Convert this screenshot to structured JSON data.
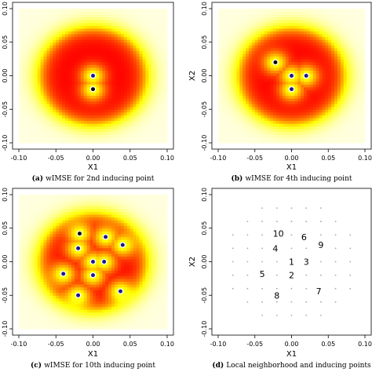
{
  "colors": {
    "low": "#ff0000",
    "high": "#ffffe0",
    "inducing_point": "#1a1a8c",
    "new_point": "#000000",
    "grid_point": "#a8a8a8"
  },
  "chart_data": [
    {
      "type": "heatmap",
      "title": "",
      "caption_tag": "(a)",
      "caption_text": "wIMSE for 2nd inducing point",
      "xlabel": "X1",
      "ylabel": "",
      "xlim": [
        -0.1,
        0.1
      ],
      "ylim": [
        -0.1,
        0.1
      ],
      "x_ticks": [
        "-0.10",
        "-0.05",
        "0.00",
        "0.05",
        "0.10"
      ],
      "y_ticks": [
        "-0.10",
        "-0.05",
        "0.00",
        "0.05",
        "0.10"
      ],
      "inducing_points": [
        [
          0.0,
          0.0
        ]
      ],
      "new_point": [
        0.0,
        -0.02
      ]
    },
    {
      "type": "heatmap",
      "title": "",
      "caption_tag": "(b)",
      "caption_text": "wIMSE for 4th inducing point",
      "xlabel": "X1",
      "ylabel": "X2",
      "xlim": [
        -0.1,
        0.1
      ],
      "ylim": [
        -0.1,
        0.1
      ],
      "x_ticks": [
        "-0.10",
        "-0.05",
        "0.00",
        "0.05",
        "0.10"
      ],
      "y_ticks": [
        "-0.10",
        "-0.05",
        "0.00",
        "0.05",
        "0.10"
      ],
      "inducing_points": [
        [
          0.0,
          0.0
        ],
        [
          0.0,
          -0.02
        ],
        [
          0.02,
          0.0
        ]
      ],
      "new_point": [
        -0.022,
        0.02
      ]
    },
    {
      "type": "heatmap",
      "title": "",
      "caption_tag": "(c)",
      "caption_text": "wIMSE for 10th inducing point",
      "xlabel": "X1",
      "ylabel": "",
      "xlim": [
        -0.1,
        0.1
      ],
      "ylim": [
        -0.1,
        0.1
      ],
      "x_ticks": [
        "-0.10",
        "-0.05",
        "0.00",
        "0.05",
        "0.10"
      ],
      "y_ticks": [
        "-0.10",
        "-0.05",
        "0.00",
        "0.05",
        "0.10"
      ],
      "inducing_points": [
        [
          0.0,
          0.0
        ],
        [
          -0.02,
          0.02
        ],
        [
          0.017,
          0.037
        ],
        [
          0.04,
          0.025
        ],
        [
          -0.04,
          -0.018
        ],
        [
          0.0,
          -0.02
        ],
        [
          0.037,
          -0.044
        ],
        [
          -0.02,
          -0.05
        ],
        [
          0.015,
          0.0
        ]
      ],
      "new_point": [
        -0.018,
        0.042
      ]
    },
    {
      "type": "scatter",
      "title": "",
      "caption_tag": "(d)",
      "caption_text": "Local neighborhood and inducing points",
      "xlabel": "X1",
      "ylabel": "X2",
      "xlim": [
        -0.1,
        0.1
      ],
      "ylim": [
        -0.1,
        0.1
      ],
      "x_ticks": [
        "-0.10",
        "-0.05",
        "0.00",
        "0.05",
        "0.10"
      ],
      "y_ticks": [
        "-0.10",
        "-0.05",
        "0.00",
        "0.05",
        "0.10"
      ],
      "grid_step": 0.02,
      "grid_extent": 0.08,
      "labels": [
        {
          "text": "1",
          "x": 0.0,
          "y": 0.0
        },
        {
          "text": "2",
          "x": 0.0,
          "y": -0.02
        },
        {
          "text": "3",
          "x": 0.02,
          "y": 0.0
        },
        {
          "text": "4",
          "x": -0.022,
          "y": 0.02
        },
        {
          "text": "5",
          "x": -0.04,
          "y": -0.018
        },
        {
          "text": "6",
          "x": 0.017,
          "y": 0.037
        },
        {
          "text": "7",
          "x": 0.037,
          "y": -0.044
        },
        {
          "text": "8",
          "x": -0.02,
          "y": -0.05
        },
        {
          "text": "9",
          "x": 0.04,
          "y": 0.025
        },
        {
          "text": "10",
          "x": -0.018,
          "y": 0.042
        }
      ]
    }
  ]
}
